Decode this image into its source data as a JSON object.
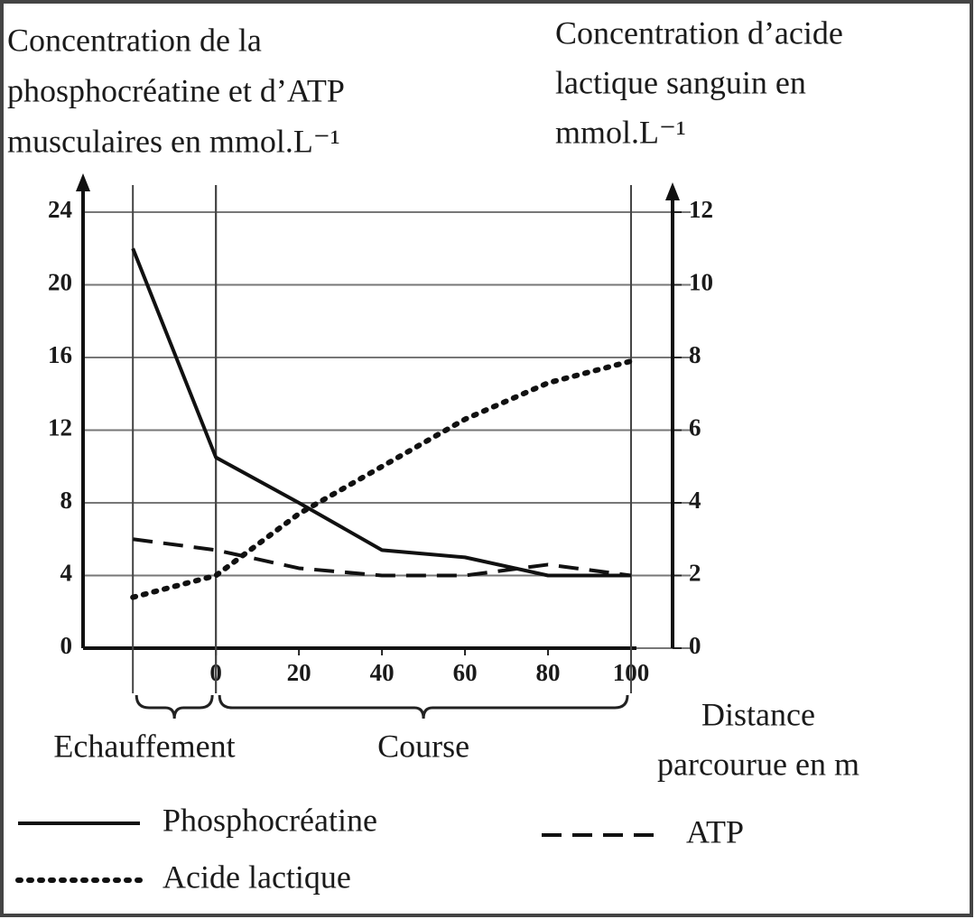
{
  "chart_data": {
    "type": "line",
    "ylabel": [
      "Concentration de la",
      "phosphocréatine et d’ATP",
      "musculaires en mmol.L⁻¹"
    ],
    "y2label": [
      "Concentration d’acide",
      "lactique sanguin en",
      "mmol.L⁻¹"
    ],
    "xlabel": [
      "Distance",
      "parcourue en m"
    ],
    "x": [
      -20,
      0,
      20,
      40,
      60,
      80,
      100
    ],
    "xlim": [
      -32,
      110
    ],
    "xticks": [
      0,
      20,
      40,
      60,
      80,
      100
    ],
    "ylim": [
      0,
      24
    ],
    "yticks": [
      0,
      4,
      8,
      12,
      16,
      20,
      24
    ],
    "y2lim": [
      0,
      12
    ],
    "y2ticks": [
      0,
      2,
      4,
      6,
      8,
      10,
      12
    ],
    "grid": true,
    "annotations": [
      {
        "text": "Echauffement",
        "x": [
          -20,
          0
        ]
      },
      {
        "text": "Course",
        "x": [
          0,
          100
        ]
      }
    ],
    "series": [
      {
        "name": "Phosphocréatine",
        "color": "#111111",
        "dash": "solid",
        "values": [
          22,
          10.5,
          8,
          5.4,
          5,
          4,
          4
        ]
      },
      {
        "name": "ATP",
        "color": "#111111",
        "dash": "dashed",
        "values": [
          6,
          5.4,
          4.4,
          4,
          4,
          4.6,
          4
        ]
      },
      {
        "name": "Acide lactique",
        "color": "#111111",
        "dash": "dotted",
        "axis": "y2",
        "values": [
          1.4,
          2,
          3.7,
          5,
          6.3,
          7.3,
          7.9
        ]
      }
    ]
  }
}
